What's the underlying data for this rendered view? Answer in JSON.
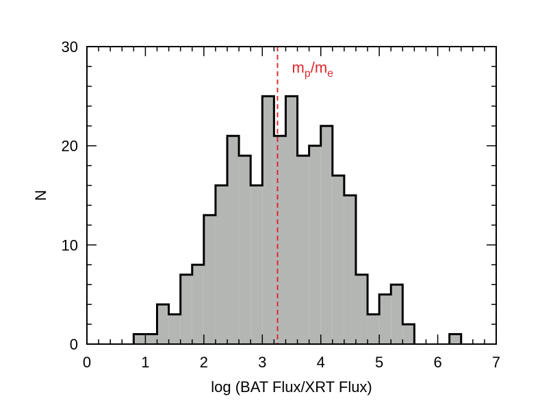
{
  "chart_data": {
    "type": "histogram",
    "xlabel": "log (BAT Flux/XRT Flux)",
    "ylabel": "N",
    "xlim": [
      0,
      7
    ],
    "ylim": [
      0,
      30
    ],
    "x_ticks": [
      "0",
      "1",
      "2",
      "3",
      "4",
      "5",
      "6",
      "7"
    ],
    "y_ticks": [
      "0",
      "10",
      "20",
      "30"
    ],
    "bin_width": 0.2,
    "bin_starts": [
      0.8,
      1.0,
      1.2,
      1.4,
      1.6,
      1.8,
      2.0,
      2.2,
      2.4,
      2.6,
      2.8,
      3.0,
      3.2,
      3.4,
      3.6,
      3.8,
      4.0,
      4.2,
      4.4,
      4.6,
      4.8,
      5.0,
      5.2,
      5.4,
      5.6,
      5.8,
      6.0,
      6.2
    ],
    "counts": [
      1,
      1,
      4,
      3,
      7,
      8,
      13,
      16,
      21,
      19,
      16,
      25,
      21,
      25,
      19,
      20,
      22,
      17,
      15,
      7,
      3,
      5,
      6,
      2,
      0,
      0,
      0,
      1
    ],
    "reference_line": {
      "x": 3.26,
      "label_main": "m",
      "label_sub1": "p",
      "label_slash": "/m",
      "label_sub2": "e",
      "color": "#e0282b",
      "style": "dashed"
    },
    "fill_color": "#b4b6b4",
    "grid": false,
    "legend": "none"
  }
}
